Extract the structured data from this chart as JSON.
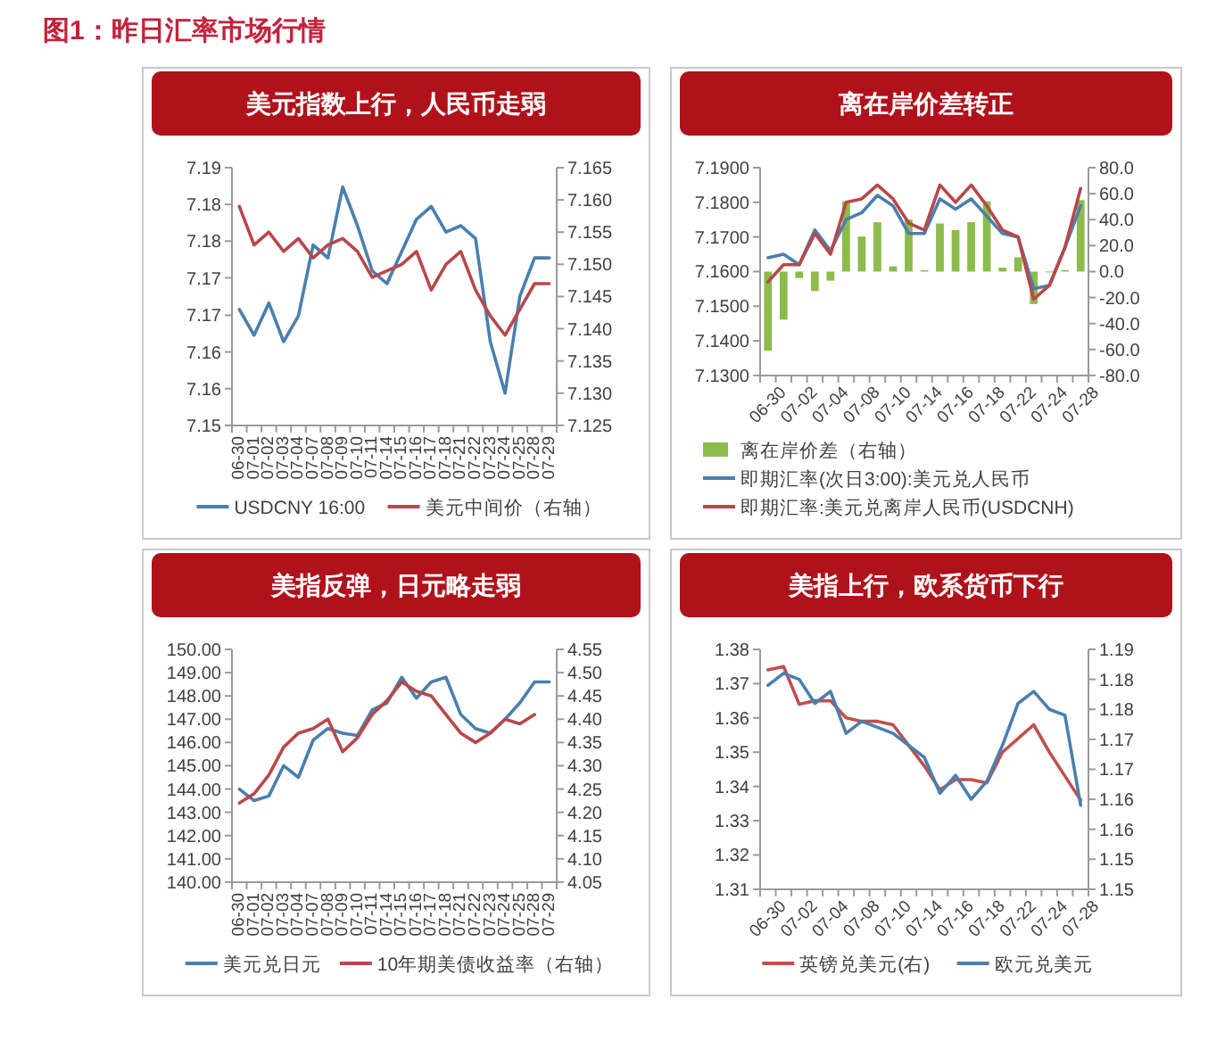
{
  "chart_data": [
    {
      "type": "line",
      "title": "美元指数上行，人民币走弱",
      "annotations": [
        "图1：昨日汇率市场行情"
      ],
      "categories": [
        "06-30",
        "07-01",
        "07-02",
        "07-03",
        "07-04",
        "07-07",
        "07-08",
        "07-09",
        "07-10",
        "07-11",
        "07-14",
        "07-15",
        "07-16",
        "07-17",
        "07-18",
        "07-21",
        "07-22",
        "07-23",
        "07-24",
        "07-25",
        "07-28",
        "07-29"
      ],
      "series": [
        {
          "name": "USDCNY 16:00",
          "color": "#4a7fae",
          "values": [
            7.168,
            7.164,
            7.169,
            7.163,
            7.167,
            7.178,
            7.176,
            7.187,
            7.181,
            7.174,
            7.172,
            7.177,
            7.182,
            7.184,
            7.18,
            7.181,
            7.179,
            7.163,
            7.155,
            7.17,
            7.176,
            7.176
          ]
        },
        {
          "name": "美元中间价（右轴）",
          "color": "#b8474a",
          "axis": "y2",
          "values": [
            7.159,
            7.153,
            7.155,
            7.152,
            7.154,
            7.151,
            7.153,
            7.154,
            7.152,
            7.148,
            7.149,
            7.15,
            7.152,
            7.146,
            7.15,
            7.152,
            7.146,
            7.142,
            7.139,
            7.143,
            7.147,
            7.147
          ]
        }
      ],
      "ylim": [
        7.15,
        7.19
      ],
      "yticks": [
        {
          "value": 7.15,
          "label": "7.15"
        },
        {
          "value": 7.1557,
          "label": "7.16"
        },
        {
          "value": 7.1614,
          "label": "7.16"
        },
        {
          "value": 7.1671,
          "label": "7.17"
        },
        {
          "value": 7.1729,
          "label": "7.17"
        },
        {
          "value": 7.1786,
          "label": "7.18"
        },
        {
          "value": 7.1843,
          "label": "7.18"
        },
        {
          "value": 7.19,
          "label": "7.19"
        }
      ],
      "y2lim": [
        7.125,
        7.165
      ],
      "y2ticks": [
        7.125,
        {
          "value": 7.13,
          "label": "7.130"
        },
        7.135,
        {
          "value": 7.14,
          "label": "7.140"
        },
        7.145,
        {
          "value": 7.15,
          "label": "7.150"
        },
        7.155,
        {
          "value": 7.16,
          "label": "7.160"
        },
        7.165
      ],
      "legend": "bottom"
    },
    {
      "type": "line",
      "title": "离在岸价差转正",
      "categories": [
        "06-30",
        null,
        "07-02",
        null,
        "07-04",
        null,
        "07-08",
        null,
        "07-10",
        null,
        "07-14",
        null,
        "07-16",
        null,
        "07-18",
        null,
        "07-22",
        null,
        "07-24",
        null,
        "07-28"
      ],
      "series": [
        {
          "name": "离在岸价差（右轴）",
          "type": "bar",
          "axis": "y2",
          "color": "#8dbb4c",
          "values": [
            -61,
            -37,
            -5,
            -15,
            -7,
            54,
            27,
            38,
            4,
            40,
            1,
            37,
            32,
            38,
            54,
            3,
            11,
            -25,
            0,
            1,
            55
          ]
        },
        {
          "name": "即期汇率(次日3:00):美元兑人民币",
          "color": "#4a7fae",
          "values": [
            7.164,
            7.165,
            7.162,
            7.172,
            7.166,
            7.175,
            7.177,
            7.182,
            7.179,
            7.171,
            7.171,
            7.181,
            7.178,
            7.181,
            7.176,
            7.171,
            7.17,
            7.155,
            7.156,
            7.167,
            7.179
          ]
        },
        {
          "name": "即期汇率:美元兑离岸人民币(USDCNH)",
          "color": "#b8474a",
          "values": [
            7.157,
            7.162,
            7.162,
            7.171,
            7.165,
            7.18,
            7.181,
            7.185,
            7.181,
            7.174,
            7.172,
            7.185,
            7.18,
            7.185,
            7.179,
            7.172,
            7.17,
            7.152,
            7.156,
            7.167,
            7.184
          ]
        }
      ],
      "ylim": [
        7.13,
        7.19
      ],
      "yticks": [
        {
          "value": 7.13,
          "label": "7.1300"
        },
        {
          "value": 7.14,
          "label": "7.1400"
        },
        {
          "value": 7.15,
          "label": "7.1500"
        },
        {
          "value": 7.16,
          "label": "7.1600"
        },
        {
          "value": 7.17,
          "label": "7.1700"
        },
        {
          "value": 7.18,
          "label": "7.1800"
        },
        {
          "value": 7.19,
          "label": "7.1900"
        }
      ],
      "y2lim": [
        -80,
        80
      ],
      "y2ticks": [
        {
          "value": -80,
          "label": "-80.0"
        },
        {
          "value": -60,
          "label": "-60.0"
        },
        {
          "value": -40,
          "label": "-40.0"
        },
        {
          "value": -20,
          "label": "-20.0"
        },
        {
          "value": 0,
          "label": "0.0"
        },
        {
          "value": 20,
          "label": "20.0"
        },
        {
          "value": 40,
          "label": "40.0"
        },
        {
          "value": 60,
          "label": "60.0"
        },
        {
          "value": 80,
          "label": "80.0"
        }
      ],
      "legend": "bottom"
    },
    {
      "type": "line",
      "title": "美指反弹，日元略走弱",
      "categories": [
        "06-30",
        "07-01",
        "07-02",
        "07-03",
        "07-04",
        "07-07",
        "07-08",
        "07-09",
        "07-10",
        "07-11",
        "07-14",
        "07-15",
        "07-16",
        "07-17",
        "07-18",
        "07-21",
        "07-22",
        "07-23",
        "07-24",
        "07-25",
        "07-28",
        "07-29"
      ],
      "series": [
        {
          "name": "美元兑日元",
          "color": "#4a7fae",
          "values": [
            144.0,
            143.5,
            143.7,
            145.0,
            144.5,
            146.1,
            146.6,
            146.4,
            146.3,
            147.4,
            147.7,
            148.8,
            147.9,
            148.6,
            148.8,
            147.2,
            146.6,
            146.4,
            147.0,
            147.7,
            148.6,
            148.6
          ]
        },
        {
          "name": "10年期美债收益率（右轴）",
          "color": "#b8474a",
          "axis": "y2",
          "values": [
            4.22,
            4.24,
            4.28,
            4.34,
            4.37,
            4.38,
            4.4,
            4.33,
            4.36,
            4.41,
            4.44,
            4.48,
            4.46,
            4.45,
            4.41,
            4.37,
            4.35,
            4.37,
            4.4,
            4.39,
            4.41,
            null
          ]
        }
      ],
      "ylim": [
        140,
        150
      ],
      "yticks": [
        {
          "value": 140,
          "label": "140.00"
        },
        {
          "value": 141,
          "label": "141.00"
        },
        {
          "value": 142,
          "label": "142.00"
        },
        {
          "value": 143,
          "label": "143.00"
        },
        {
          "value": 144,
          "label": "144.00"
        },
        {
          "value": 145,
          "label": "145.00"
        },
        {
          "value": 146,
          "label": "146.00"
        },
        {
          "value": 147,
          "label": "147.00"
        },
        {
          "value": 148,
          "label": "148.00"
        },
        {
          "value": 149,
          "label": "149.00"
        },
        {
          "value": 150,
          "label": "150.00"
        }
      ],
      "y2lim": [
        4.05,
        4.55
      ],
      "y2ticks": [
        4.05,
        {
          "value": 4.1,
          "label": "4.10"
        },
        4.15,
        {
          "value": 4.2,
          "label": "4.20"
        },
        4.25,
        {
          "value": 4.3,
          "label": "4.30"
        },
        4.35,
        {
          "value": 4.4,
          "label": "4.40"
        },
        4.45,
        {
          "value": 4.5,
          "label": "4.50"
        },
        4.55
      ],
      "legend": "bottom"
    },
    {
      "type": "line",
      "title": "美指上行，欧系货币下行",
      "categories": [
        "06-30",
        null,
        "07-02",
        null,
        "07-04",
        null,
        "07-08",
        null,
        "07-10",
        null,
        "07-14",
        null,
        "07-16",
        null,
        "07-18",
        null,
        "07-22",
        null,
        "07-24",
        null,
        "07-28"
      ],
      "series": [
        {
          "name": "英镑兑美元(右)",
          "color": "#c0504d",
          "values": [
            1.374,
            1.375,
            1.364,
            1.365,
            1.365,
            1.36,
            1.359,
            1.359,
            1.358,
            1.352,
            1.346,
            1.339,
            1.342,
            1.342,
            1.341,
            1.35,
            1.354,
            1.358,
            1.35,
            1.343,
            1.336
          ]
        },
        {
          "name": "欧元兑美元",
          "color": "#4a7fae",
          "axis": "y2",
          "values": [
            1.184,
            1.186,
            1.185,
            1.181,
            1.183,
            1.176,
            1.178,
            1.177,
            1.176,
            1.174,
            1.172,
            1.166,
            1.169,
            1.165,
            1.168,
            1.174,
            1.181,
            1.183,
            1.18,
            1.179,
            1.164
          ]
        }
      ],
      "ylim": [
        1.31,
        1.38
      ],
      "yticks": [
        1.31,
        1.32,
        1.33,
        1.34,
        1.35,
        1.36,
        1.37,
        1.38
      ],
      "y2lim": [
        1.15,
        1.19
      ],
      "y2ticks": [
        {
          "value": 1.15,
          "label": "1.15"
        },
        {
          "value": 1.155,
          "label": "1.15"
        },
        {
          "value": 1.16,
          "label": "1.16"
        },
        {
          "value": 1.165,
          "label": "1.16"
        },
        {
          "value": 1.17,
          "label": "1.17"
        },
        {
          "value": 1.175,
          "label": "1.17"
        },
        {
          "value": 1.18,
          "label": "1.18"
        },
        {
          "value": 1.185,
          "label": "1.18"
        },
        {
          "value": 1.19,
          "label": "1.19"
        }
      ],
      "legend": "bottom"
    }
  ]
}
